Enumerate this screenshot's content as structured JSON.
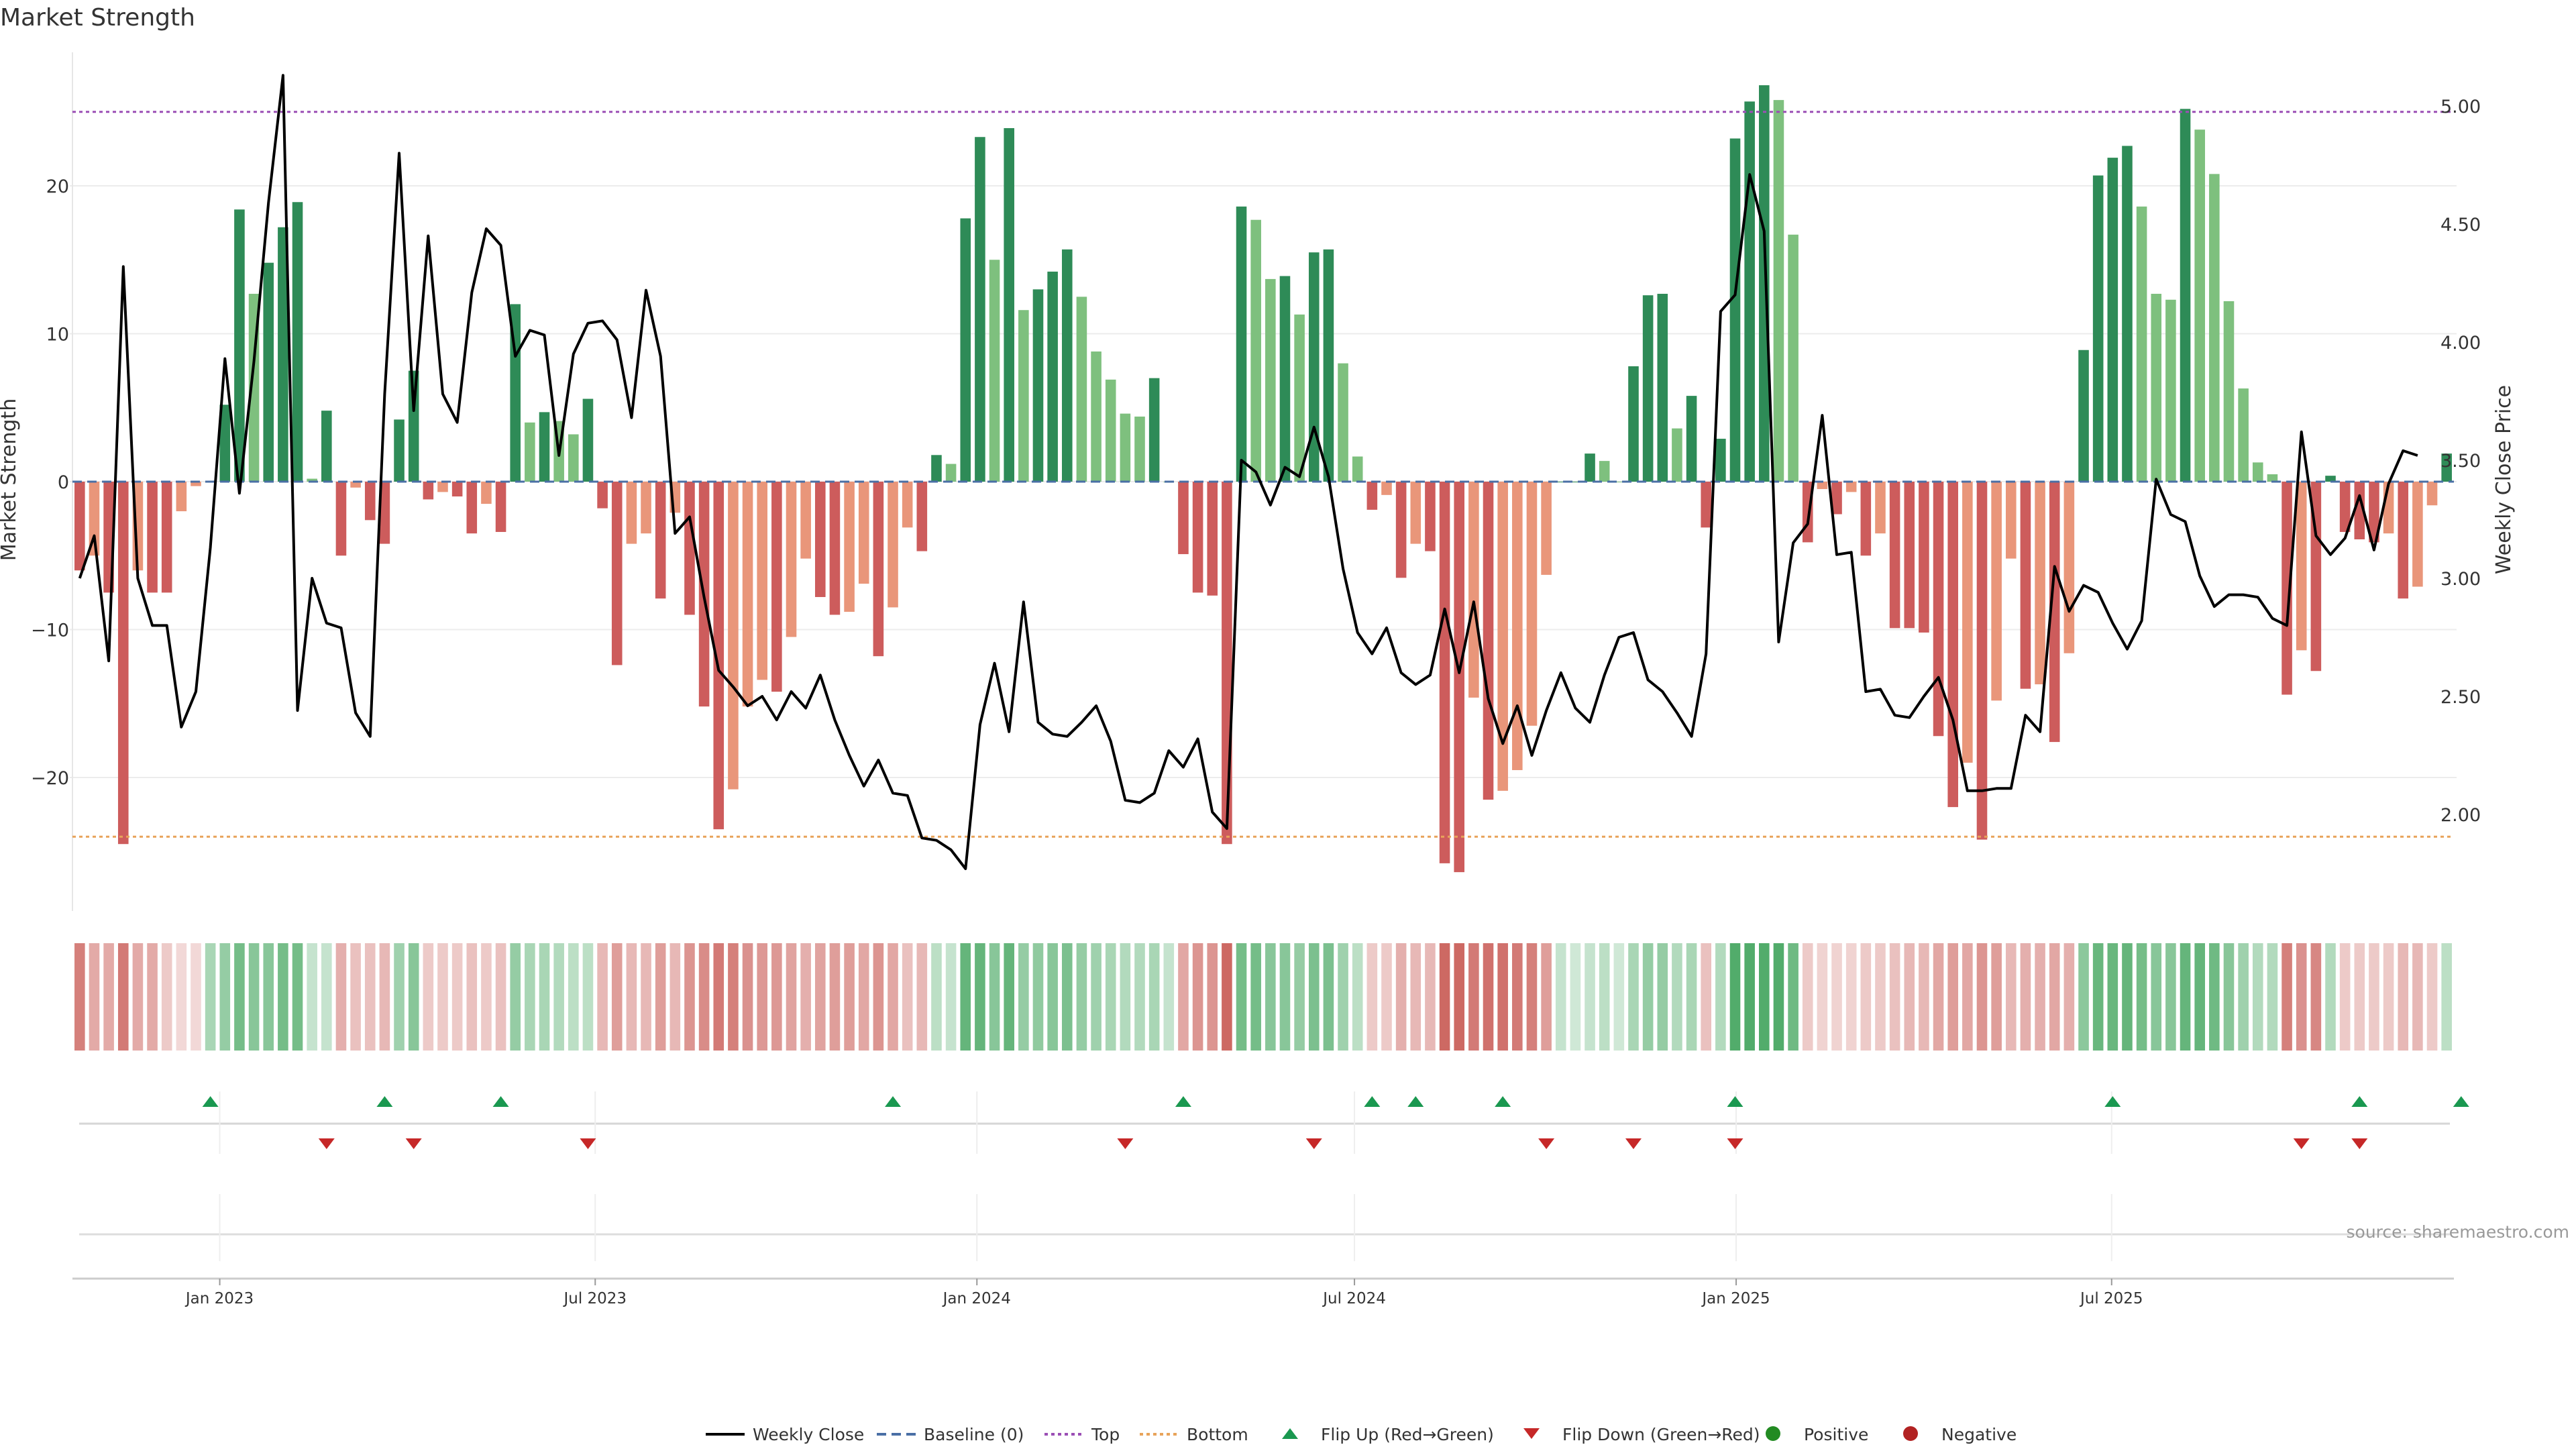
{
  "title": "Market Strength",
  "source": "source: sharemaestro.com",
  "colors": {
    "pos_strong": "#2e8b57",
    "pos_weak": "#7ec07e",
    "neg_strong": "#cd5c5c",
    "neg_weak": "#e9967a",
    "close_line": "#000000",
    "baseline": "#4a6fa5",
    "top_line": "#9b4fb5",
    "bottom_line": "#e8a35a",
    "flip_up": "#1a9850",
    "flip_down": "#c62828",
    "positive_dot": "#228b22",
    "negative_dot": "#b22222"
  },
  "chart_data": {
    "type": "bar",
    "title": "Market Strength",
    "ylabel": "Market Strength",
    "y2label": "Weekly Close Price",
    "ylim": [
      -29,
      29
    ],
    "y2lim": [
      1.6,
      5.15
    ],
    "yticks": [
      -20,
      -10,
      0,
      10,
      20
    ],
    "yticklabels": [
      "−20",
      "−10",
      "0",
      "10",
      "20"
    ],
    "y2ticks": [
      2.0,
      2.5,
      3.0,
      3.5,
      4.0,
      4.5,
      5.0
    ],
    "y2ticklabels": [
      "2.00",
      "2.50",
      "3.00",
      "3.50",
      "4.00",
      "4.50",
      "5.00"
    ],
    "top_level": 25,
    "bottom_level": -24,
    "weeks_start": "2022-10-22",
    "xticks": [
      {
        "date": "2023-01-01",
        "label": "Jan 2023"
      },
      {
        "date": "2023-07-01",
        "label": "Jul 2023"
      },
      {
        "date": "2024-01-01",
        "label": "Jan 2024"
      },
      {
        "date": "2024-07-01",
        "label": "Jul 2024"
      },
      {
        "date": "2025-01-01",
        "label": "Jan 2025"
      },
      {
        "date": "2025-07-01",
        "label": "Jul 2025"
      }
    ],
    "strength": [
      -6,
      -5,
      -7.5,
      -24.5,
      -6,
      -7.5,
      -7.5,
      -2,
      -0.3,
      0,
      5.2,
      18.4,
      12.7,
      14.8,
      17.2,
      18.9,
      0.2,
      4.8,
      -5,
      -0.4,
      -2.6,
      -4.2,
      4.2,
      7.5,
      -1.2,
      -0.7,
      -1,
      -3.5,
      -1.5,
      -3.4,
      12,
      4,
      4.7,
      4.1,
      3.2,
      5.6,
      -1.8,
      -12.4,
      -4.2,
      -3.5,
      -7.9,
      -2.1,
      -9,
      -15.2,
      -23.5,
      -20.8,
      -15.2,
      -13.4,
      -14.2,
      -10.5,
      -5.2,
      -7.8,
      -9,
      -8.8,
      -6.9,
      -11.8,
      -8.5,
      -3.1,
      -4.7,
      1.8,
      1.2,
      17.8,
      23.3,
      15,
      23.9,
      11.6,
      13,
      14.2,
      15.7,
      12.5,
      8.8,
      6.9,
      4.6,
      4.4,
      7,
      0,
      -4.9,
      -7.5,
      -7.7,
      -24.5,
      18.6,
      17.7,
      13.7,
      13.9,
      11.3,
      15.5,
      15.7,
      8,
      1.7,
      -1.9,
      -0.9,
      -6.5,
      -4.2,
      -4.7,
      -25.8,
      -26.4,
      -14.6,
      -21.5,
      -20.9,
      -19.5,
      -16.5,
      -6.3,
      0,
      0,
      1.9,
      1.4,
      0,
      7.8,
      12.6,
      12.7,
      3.6,
      5.8,
      -3.1,
      2.9,
      23.2,
      25.7,
      26.8,
      25.8,
      16.7,
      -4.1,
      -0.5,
      -2.2,
      -0.7,
      -5,
      -3.5,
      -9.9,
      -9.9,
      -10.2,
      -17.2,
      -22,
      -19,
      -24.2,
      -14.8,
      -5.2,
      -14,
      -13.7,
      -17.6,
      -11.6,
      8.9,
      20.7,
      21.9,
      22.7,
      18.6,
      12.7,
      12.3,
      25.2,
      23.8,
      20.8,
      12.2,
      6.3,
      1.3,
      0.5,
      -14.4,
      -11.4,
      -12.8,
      0.4,
      -3.4,
      -3.9,
      -4.1,
      -3.5,
      -7.9,
      -7.1,
      -1.6,
      1.9
    ],
    "close": [
      3.0,
      3.18,
      2.65,
      4.32,
      3.0,
      2.8,
      2.8,
      2.37,
      2.52,
      3.13,
      3.93,
      3.36,
      3.92,
      4.59,
      5.13,
      2.44,
      3.0,
      2.81,
      2.79,
      2.43,
      2.33,
      3.78,
      4.8,
      3.71,
      4.45,
      3.78,
      3.66,
      4.21,
      4.48,
      4.41,
      3.94,
      4.05,
      4.03,
      3.52,
      3.95,
      4.08,
      4.09,
      4.01,
      3.68,
      4.22,
      3.94,
      3.19,
      3.26,
      2.92,
      2.61,
      2.54,
      2.46,
      2.5,
      2.4,
      2.52,
      2.45,
      2.59,
      2.4,
      2.25,
      2.12,
      2.23,
      2.09,
      2.08,
      1.9,
      1.89,
      1.85,
      1.77,
      2.38,
      2.64,
      2.35,
      2.9,
      2.39,
      2.34,
      2.33,
      2.39,
      2.46,
      2.31,
      2.06,
      2.05,
      2.09,
      2.27,
      2.2,
      2.32,
      2.01,
      1.94,
      3.5,
      3.45,
      3.31,
      3.47,
      3.43,
      3.64,
      3.43,
      3.04,
      2.77,
      2.68,
      2.79,
      2.6,
      2.55,
      2.59,
      2.87,
      2.6,
      2.9,
      2.49,
      2.3,
      2.46,
      2.25,
      2.44,
      2.6,
      2.45,
      2.39,
      2.59,
      2.75,
      2.77,
      2.57,
      2.52,
      2.43,
      2.33,
      2.68,
      4.13,
      4.2,
      4.71,
      4.47,
      2.73,
      3.15,
      3.23,
      3.69,
      3.1,
      3.11,
      2.52,
      2.53,
      2.42,
      2.41,
      2.5,
      2.58,
      2.4,
      2.1,
      2.1,
      2.11,
      2.11,
      2.42,
      2.35,
      3.05,
      2.86,
      2.97,
      2.94,
      2.81,
      2.7,
      2.82,
      3.42,
      3.27,
      3.24,
      3.01,
      2.88,
      2.93,
      2.93,
      2.92,
      2.83,
      2.8,
      3.62,
      3.18,
      3.1,
      3.17,
      3.35,
      3.12,
      3.4,
      3.54,
      3.52
    ],
    "heat": [
      0.72,
      0.48,
      0.48,
      0.75,
      0.48,
      0.48,
      0.3,
      0.22,
      0.22,
      0.45,
      0.55,
      0.72,
      0.62,
      0.62,
      0.72,
      0.72,
      0.3,
      0.3,
      0.45,
      0.35,
      0.35,
      0.4,
      0.5,
      0.62,
      0.3,
      0.3,
      0.3,
      0.35,
      0.3,
      0.35,
      0.55,
      0.45,
      0.45,
      0.4,
      0.35,
      0.35,
      0.4,
      0.55,
      0.4,
      0.4,
      0.55,
      0.4,
      0.6,
      0.65,
      0.75,
      0.72,
      0.62,
      0.58,
      0.58,
      0.52,
      0.45,
      0.52,
      0.55,
      0.55,
      0.5,
      0.6,
      0.5,
      0.35,
      0.4,
      0.35,
      0.3,
      0.8,
      0.8,
      0.62,
      0.8,
      0.55,
      0.58,
      0.62,
      0.68,
      0.55,
      0.5,
      0.45,
      0.4,
      0.4,
      0.45,
      0.3,
      0.5,
      0.6,
      0.6,
      0.85,
      0.72,
      0.72,
      0.62,
      0.62,
      0.55,
      0.68,
      0.68,
      0.5,
      0.35,
      0.3,
      0.3,
      0.45,
      0.4,
      0.4,
      0.85,
      0.85,
      0.75,
      0.8,
      0.8,
      0.75,
      0.72,
      0.55,
      0.3,
      0.25,
      0.3,
      0.35,
      0.25,
      0.45,
      0.55,
      0.55,
      0.4,
      0.45,
      0.35,
      0.4,
      0.9,
      0.9,
      0.9,
      0.9,
      0.75,
      0.3,
      0.25,
      0.25,
      0.25,
      0.3,
      0.3,
      0.35,
      0.4,
      0.4,
      0.5,
      0.55,
      0.5,
      0.6,
      0.55,
      0.4,
      0.45,
      0.45,
      0.5,
      0.45,
      0.6,
      0.78,
      0.78,
      0.8,
      0.72,
      0.62,
      0.62,
      0.8,
      0.8,
      0.75,
      0.62,
      0.5,
      0.4,
      0.4,
      0.72,
      0.62,
      0.68,
      0.4,
      0.3,
      0.3,
      0.3,
      0.3,
      0.4,
      0.4,
      0.3,
      0.35
    ],
    "flips_up": [
      9,
      21,
      29,
      56,
      76,
      89,
      92,
      98,
      114,
      140,
      157,
      164
    ],
    "flips_down": [
      17,
      23,
      35,
      72,
      85,
      101,
      107,
      114,
      153,
      157
    ],
    "legend": [
      "Weekly Close",
      "Baseline (0)",
      "Top",
      "Bottom",
      "Flip Up (Red→Green)",
      "Flip Down (Green→Red)",
      "Positive",
      "Negative"
    ],
    "legend_position": "bottom",
    "grid": true
  }
}
